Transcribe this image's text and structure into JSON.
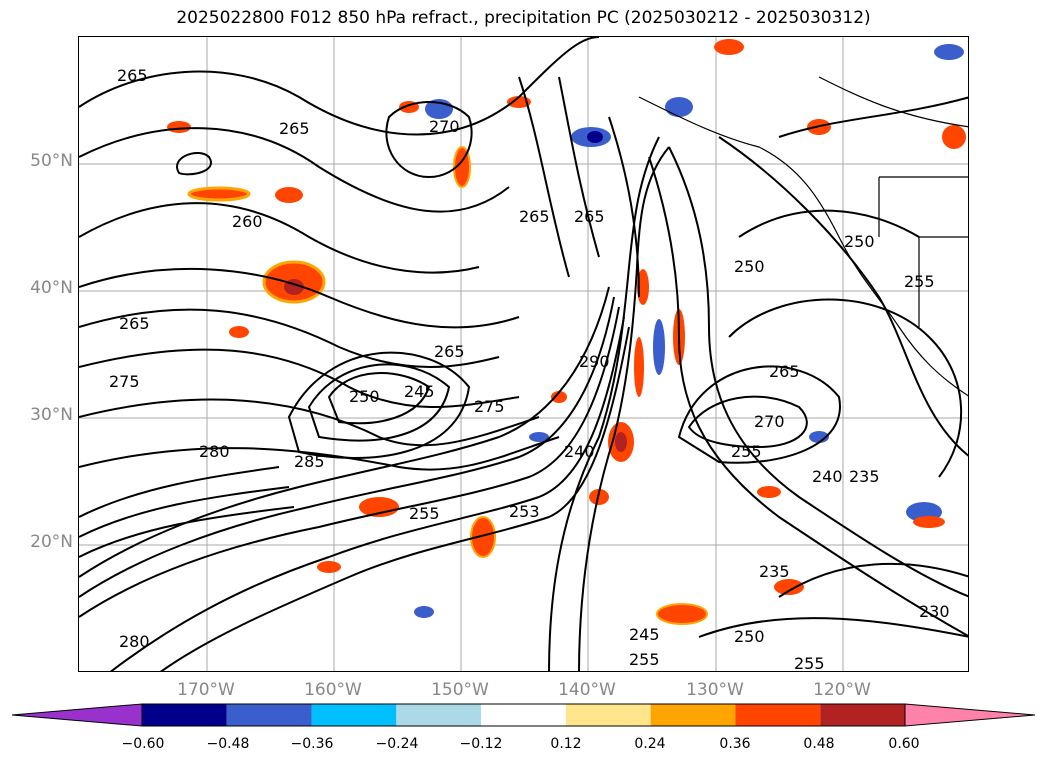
{
  "title": "2025022800 F012 850 hPa refract., precipitation PC (2025030212 - 2025030312)",
  "lat_labels": [
    "50°N",
    "40°N",
    "30°N",
    "20°N"
  ],
  "lon_labels": [
    "170°W",
    "160°W",
    "150°W",
    "140°W",
    "130°W",
    "120°W"
  ],
  "colorbar": {
    "colors": [
      "#9932cc",
      "#00008b",
      "#3a5fcd",
      "#00bfff",
      "#add8e6",
      "#ffffff",
      "#ffe68c",
      "#ffa500",
      "#ff4500",
      "#b22222",
      "#ff82ab"
    ],
    "ticks": [
      "−0.60",
      "−0.48",
      "−0.36",
      "−0.24",
      "−0.12",
      "0.12",
      "0.24",
      "0.36",
      "0.48",
      "0.60"
    ]
  },
  "contour_labels": [
    "265",
    "265",
    "270",
    "260",
    "265",
    "265",
    "265",
    "250",
    "245",
    "275",
    "280",
    "285",
    "255",
    "290",
    "240",
    "253",
    "250",
    "265",
    "270",
    "255",
    "240",
    "235",
    "235",
    "230",
    "250",
    "245",
    "255",
    "255",
    "265",
    "255",
    "250",
    "280",
    "275"
  ]
}
